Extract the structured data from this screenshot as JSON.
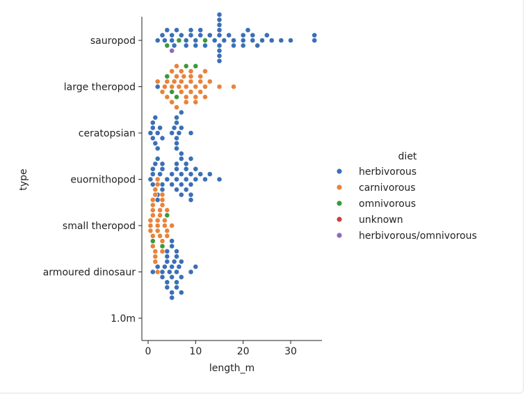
{
  "chart_data": {
    "type": "scatter",
    "kind": "swarm",
    "xlabel": "length_m",
    "ylabel": "type",
    "xlim": [
      -1,
      36
    ],
    "xticks": [
      0,
      10,
      20,
      30
    ],
    "categories": [
      "sauropod",
      "large theropod",
      "ceratopsian",
      "euornithopod",
      "small theropod",
      "armoured dinosaur",
      "1.0m"
    ],
    "legend": {
      "title": "diet",
      "placement": "center-right",
      "entries": [
        "herbivorous",
        "carnivorous",
        "omnivorous",
        "unknown",
        "herbivorous/omnivorous"
      ]
    },
    "colors": {
      "herbivorous": "#3b6fb6",
      "carnivorous": "#e8833a",
      "omnivorous": "#3a9a3a",
      "unknown": "#c8413b",
      "herbivorous/omnivorous": "#9467bd"
    },
    "series": [
      {
        "name": "sauropod",
        "points": [
          {
            "x": 2,
            "diet": "herbivorous"
          },
          {
            "x": 3,
            "diet": "herbivorous"
          },
          {
            "x": 3.5,
            "diet": "herbivorous"
          },
          {
            "x": 4,
            "diet": "omnivorous"
          },
          {
            "x": 4,
            "diet": "herbivorous"
          },
          {
            "x": 5,
            "diet": "herbivorous"
          },
          {
            "x": 5,
            "diet": "herbivorous"
          },
          {
            "x": 5,
            "diet": "herbivorous/omnivorous"
          },
          {
            "x": 5.5,
            "diet": "herbivorous"
          },
          {
            "x": 6,
            "diet": "herbivorous"
          },
          {
            "x": 6.5,
            "diet": "omnivorous"
          },
          {
            "x": 7,
            "diet": "herbivorous"
          },
          {
            "x": 8,
            "diet": "herbivorous"
          },
          {
            "x": 8,
            "diet": "herbivorous"
          },
          {
            "x": 9,
            "diet": "herbivorous"
          },
          {
            "x": 9,
            "diet": "herbivorous"
          },
          {
            "x": 10,
            "diet": "herbivorous"
          },
          {
            "x": 10,
            "diet": "herbivorous"
          },
          {
            "x": 11,
            "diet": "herbivorous"
          },
          {
            "x": 11,
            "diet": "herbivorous"
          },
          {
            "x": 12,
            "diet": "omnivorous"
          },
          {
            "x": 12,
            "diet": "herbivorous"
          },
          {
            "x": 13,
            "diet": "herbivorous"
          },
          {
            "x": 14,
            "diet": "herbivorous"
          },
          {
            "x": 15,
            "diet": "herbivorous"
          },
          {
            "x": 15,
            "diet": "herbivorous"
          },
          {
            "x": 15,
            "diet": "herbivorous"
          },
          {
            "x": 15,
            "diet": "herbivorous"
          },
          {
            "x": 15,
            "diet": "herbivorous"
          },
          {
            "x": 15,
            "diet": "herbivorous"
          },
          {
            "x": 15,
            "diet": "herbivorous"
          },
          {
            "x": 15,
            "diet": "herbivorous"
          },
          {
            "x": 15,
            "diet": "herbivorous"
          },
          {
            "x": 16,
            "diet": "herbivorous"
          },
          {
            "x": 17,
            "diet": "herbivorous"
          },
          {
            "x": 18,
            "diet": "herbivorous"
          },
          {
            "x": 18,
            "diet": "herbivorous"
          },
          {
            "x": 20,
            "diet": "herbivorous"
          },
          {
            "x": 20,
            "diet": "herbivorous"
          },
          {
            "x": 20,
            "diet": "herbivorous"
          },
          {
            "x": 21,
            "diet": "herbivorous"
          },
          {
            "x": 22,
            "diet": "herbivorous"
          },
          {
            "x": 22,
            "diet": "herbivorous"
          },
          {
            "x": 23,
            "diet": "herbivorous"
          },
          {
            "x": 24,
            "diet": "herbivorous"
          },
          {
            "x": 25,
            "diet": "herbivorous"
          },
          {
            "x": 26,
            "diet": "herbivorous"
          },
          {
            "x": 28,
            "diet": "herbivorous"
          },
          {
            "x": 30,
            "diet": "herbivorous"
          },
          {
            "x": 35,
            "diet": "herbivorous"
          },
          {
            "x": 35,
            "diet": "herbivorous"
          }
        ]
      },
      {
        "name": "large theropod",
        "points": [
          {
            "x": 2,
            "diet": "herbivorous"
          },
          {
            "x": 2,
            "diet": "carnivorous"
          },
          {
            "x": 3,
            "diet": "carnivorous"
          },
          {
            "x": 3.5,
            "diet": "carnivorous"
          },
          {
            "x": 4,
            "diet": "carnivorous"
          },
          {
            "x": 4,
            "diet": "omnivorous"
          },
          {
            "x": 4,
            "diet": "carnivorous"
          },
          {
            "x": 5,
            "diet": "carnivorous"
          },
          {
            "x": 5,
            "diet": "omnivorous"
          },
          {
            "x": 5,
            "diet": "carnivorous"
          },
          {
            "x": 5,
            "diet": "carnivorous"
          },
          {
            "x": 5.5,
            "diet": "carnivorous"
          },
          {
            "x": 6,
            "diet": "carnivorous"
          },
          {
            "x": 6,
            "diet": "omnivorous"
          },
          {
            "x": 6,
            "diet": "carnivorous"
          },
          {
            "x": 6,
            "diet": "carnivorous"
          },
          {
            "x": 6.5,
            "diet": "carnivorous"
          },
          {
            "x": 7,
            "diet": "carnivorous"
          },
          {
            "x": 7,
            "diet": "carnivorous"
          },
          {
            "x": 7,
            "diet": "carnivorous"
          },
          {
            "x": 7.5,
            "diet": "carnivorous"
          },
          {
            "x": 8,
            "diet": "carnivorous"
          },
          {
            "x": 8,
            "diet": "carnivorous"
          },
          {
            "x": 8,
            "diet": "carnivorous"
          },
          {
            "x": 8,
            "diet": "omnivorous"
          },
          {
            "x": 9,
            "diet": "carnivorous"
          },
          {
            "x": 9,
            "diet": "carnivorous"
          },
          {
            "x": 9,
            "diet": "carnivorous"
          },
          {
            "x": 9,
            "diet": "carnivorous"
          },
          {
            "x": 10,
            "diet": "carnivorous"
          },
          {
            "x": 10,
            "diet": "carnivorous"
          },
          {
            "x": 10,
            "diet": "carnivorous"
          },
          {
            "x": 10,
            "diet": "omnivorous"
          },
          {
            "x": 11,
            "diet": "carnivorous"
          },
          {
            "x": 11,
            "diet": "carnivorous"
          },
          {
            "x": 11,
            "diet": "carnivorous"
          },
          {
            "x": 12,
            "diet": "carnivorous"
          },
          {
            "x": 12,
            "diet": "carnivorous"
          },
          {
            "x": 12,
            "diet": "carnivorous"
          },
          {
            "x": 13,
            "diet": "carnivorous"
          },
          {
            "x": 15,
            "diet": "carnivorous"
          },
          {
            "x": 18,
            "diet": "carnivorous"
          }
        ]
      },
      {
        "name": "ceratopsian",
        "points": [
          {
            "x": 0.5,
            "diet": "herbivorous"
          },
          {
            "x": 1,
            "diet": "herbivorous"
          },
          {
            "x": 1,
            "diet": "herbivorous"
          },
          {
            "x": 1,
            "diet": "herbivorous"
          },
          {
            "x": 1.5,
            "diet": "herbivorous"
          },
          {
            "x": 1.5,
            "diet": "herbivorous"
          },
          {
            "x": 2,
            "diet": "herbivorous"
          },
          {
            "x": 2,
            "diet": "herbivorous"
          },
          {
            "x": 2.5,
            "diet": "herbivorous"
          },
          {
            "x": 3,
            "diet": "herbivorous"
          },
          {
            "x": 5,
            "diet": "herbivorous"
          },
          {
            "x": 5.5,
            "diet": "herbivorous"
          },
          {
            "x": 6,
            "diet": "herbivorous"
          },
          {
            "x": 6,
            "diet": "herbivorous"
          },
          {
            "x": 6,
            "diet": "herbivorous"
          },
          {
            "x": 6,
            "diet": "herbivorous"
          },
          {
            "x": 6,
            "diet": "herbivorous"
          },
          {
            "x": 6.5,
            "diet": "herbivorous"
          },
          {
            "x": 7,
            "diet": "herbivorous"
          },
          {
            "x": 7,
            "diet": "herbivorous"
          },
          {
            "x": 7,
            "diet": "herbivorous"
          },
          {
            "x": 9,
            "diet": "herbivorous"
          }
        ]
      },
      {
        "name": "euornithopod",
        "points": [
          {
            "x": 0.5,
            "diet": "herbivorous"
          },
          {
            "x": 1,
            "diet": "herbivorous"
          },
          {
            "x": 1,
            "diet": "herbivorous"
          },
          {
            "x": 1,
            "diet": "herbivorous"
          },
          {
            "x": 1.5,
            "diet": "herbivorous"
          },
          {
            "x": 1.5,
            "diet": "herbivorous"
          },
          {
            "x": 2,
            "diet": "herbivorous"
          },
          {
            "x": 2,
            "diet": "herbivorous"
          },
          {
            "x": 2,
            "diet": "herbivorous"
          },
          {
            "x": 2,
            "diet": "herbivorous"
          },
          {
            "x": 2.5,
            "diet": "herbivorous"
          },
          {
            "x": 3,
            "diet": "herbivorous"
          },
          {
            "x": 3,
            "diet": "herbivorous"
          },
          {
            "x": 3,
            "diet": "herbivorous"
          },
          {
            "x": 3,
            "diet": "herbivorous"
          },
          {
            "x": 4,
            "diet": "herbivorous"
          },
          {
            "x": 5,
            "diet": "herbivorous"
          },
          {
            "x": 5,
            "diet": "herbivorous"
          },
          {
            "x": 6,
            "diet": "herbivorous"
          },
          {
            "x": 6,
            "diet": "herbivorous"
          },
          {
            "x": 6,
            "diet": "herbivorous"
          },
          {
            "x": 6,
            "diet": "herbivorous"
          },
          {
            "x": 7,
            "diet": "herbivorous"
          },
          {
            "x": 7,
            "diet": "herbivorous"
          },
          {
            "x": 7,
            "diet": "herbivorous"
          },
          {
            "x": 7,
            "diet": "herbivorous"
          },
          {
            "x": 8,
            "diet": "herbivorous"
          },
          {
            "x": 8,
            "diet": "herbivorous"
          },
          {
            "x": 8,
            "diet": "herbivorous"
          },
          {
            "x": 8,
            "diet": "herbivorous"
          },
          {
            "x": 9,
            "diet": "herbivorous"
          },
          {
            "x": 9,
            "diet": "herbivorous"
          },
          {
            "x": 9,
            "diet": "herbivorous"
          },
          {
            "x": 9,
            "diet": "herbivorous"
          },
          {
            "x": 9,
            "diet": "herbivorous"
          },
          {
            "x": 10,
            "diet": "herbivorous"
          },
          {
            "x": 10,
            "diet": "herbivorous"
          },
          {
            "x": 11,
            "diet": "herbivorous"
          },
          {
            "x": 12,
            "diet": "herbivorous"
          },
          {
            "x": 13,
            "diet": "herbivorous"
          },
          {
            "x": 15,
            "diet": "herbivorous"
          }
        ]
      },
      {
        "name": "small theropod",
        "points": [
          {
            "x": 0.5,
            "diet": "carnivorous"
          },
          {
            "x": 0.5,
            "diet": "carnivorous"
          },
          {
            "x": 0.5,
            "diet": "carnivorous"
          },
          {
            "x": 1,
            "diet": "carnivorous"
          },
          {
            "x": 1,
            "diet": "carnivorous"
          },
          {
            "x": 1,
            "diet": "carnivorous"
          },
          {
            "x": 1,
            "diet": "omnivorous"
          },
          {
            "x": 1,
            "diet": "carnivorous"
          },
          {
            "x": 1,
            "diet": "carnivorous"
          },
          {
            "x": 1,
            "diet": "carnivorous"
          },
          {
            "x": 1.5,
            "diet": "carnivorous"
          },
          {
            "x": 1.5,
            "diet": "carnivorous"
          },
          {
            "x": 1.5,
            "diet": "carnivorous"
          },
          {
            "x": 1.5,
            "diet": "carnivorous"
          },
          {
            "x": 1.5,
            "diet": "carnivorous"
          },
          {
            "x": 2,
            "diet": "carnivorous"
          },
          {
            "x": 2,
            "diet": "carnivorous"
          },
          {
            "x": 2,
            "diet": "carnivorous"
          },
          {
            "x": 2,
            "diet": "carnivorous"
          },
          {
            "x": 2,
            "diet": "omnivorous"
          },
          {
            "x": 2,
            "diet": "carnivorous"
          },
          {
            "x": 2,
            "diet": "carnivorous"
          },
          {
            "x": 2.5,
            "diet": "carnivorous"
          },
          {
            "x": 2.5,
            "diet": "carnivorous"
          },
          {
            "x": 2.5,
            "diet": "carnivorous"
          },
          {
            "x": 3,
            "diet": "carnivorous"
          },
          {
            "x": 3,
            "diet": "carnivorous"
          },
          {
            "x": 3,
            "diet": "omnivorous"
          },
          {
            "x": 3,
            "diet": "carnivorous"
          },
          {
            "x": 3,
            "diet": "carnivorous"
          },
          {
            "x": 3,
            "diet": "carnivorous"
          },
          {
            "x": 3.5,
            "diet": "carnivorous"
          },
          {
            "x": 3.5,
            "diet": "carnivorous"
          },
          {
            "x": 4,
            "diet": "carnivorous"
          },
          {
            "x": 4,
            "diet": "omnivorous"
          },
          {
            "x": 4,
            "diet": "carnivorous"
          },
          {
            "x": 4,
            "diet": "carnivorous"
          },
          {
            "x": 5,
            "diet": "carnivorous"
          }
        ]
      },
      {
        "name": "armoured dinosaur",
        "points": [
          {
            "x": 1,
            "diet": "herbivorous"
          },
          {
            "x": 2,
            "diet": "herbivorous"
          },
          {
            "x": 3,
            "diet": "herbivorous"
          },
          {
            "x": 3,
            "diet": "herbivorous"
          },
          {
            "x": 3.5,
            "diet": "herbivorous"
          },
          {
            "x": 4,
            "diet": "herbivorous"
          },
          {
            "x": 4,
            "diet": "herbivorous"
          },
          {
            "x": 4,
            "diet": "herbivorous"
          },
          {
            "x": 4,
            "diet": "herbivorous"
          },
          {
            "x": 4,
            "diet": "herbivorous"
          },
          {
            "x": 4.5,
            "diet": "herbivorous"
          },
          {
            "x": 5,
            "diet": "herbivorous"
          },
          {
            "x": 5,
            "diet": "herbivorous"
          },
          {
            "x": 5,
            "diet": "herbivorous"
          },
          {
            "x": 5,
            "diet": "herbivorous"
          },
          {
            "x": 5,
            "diet": "herbivorous"
          },
          {
            "x": 5,
            "diet": "herbivorous"
          },
          {
            "x": 5.5,
            "diet": "herbivorous"
          },
          {
            "x": 6,
            "diet": "herbivorous"
          },
          {
            "x": 6,
            "diet": "herbivorous"
          },
          {
            "x": 6,
            "diet": "herbivorous"
          },
          {
            "x": 6,
            "diet": "herbivorous"
          },
          {
            "x": 6,
            "diet": "herbivorous"
          },
          {
            "x": 6.5,
            "diet": "herbivorous"
          },
          {
            "x": 7,
            "diet": "herbivorous"
          },
          {
            "x": 7,
            "diet": "herbivorous"
          },
          {
            "x": 7,
            "diet": "herbivorous"
          },
          {
            "x": 9,
            "diet": "herbivorous"
          },
          {
            "x": 10,
            "diet": "herbivorous"
          }
        ]
      },
      {
        "name": "1.0m",
        "points": []
      }
    ]
  }
}
